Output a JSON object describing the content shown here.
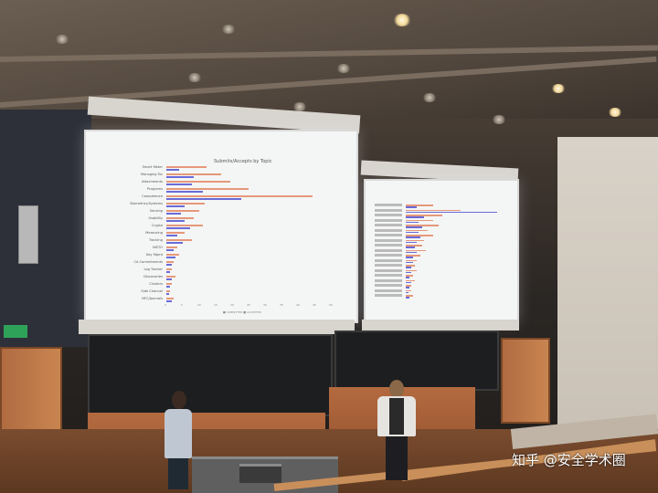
{
  "left_screen": {
    "title": "Submits/Accepts by Topic",
    "categories": [
      "Smart Meter",
      "Managing Tor",
      "Attachments",
      "Programs",
      "Competence",
      "Biometrics/Systems",
      "Sensing",
      "Usability",
      "Crypto",
      "Measuring",
      "Tracking",
      "NISTO",
      "Key Mgmt",
      "CA Commitments",
      "Log Tracker",
      "Discoveries",
      "Clusters",
      "Side Channel",
      "NFC/Journals"
    ],
    "ticks": [
      "0",
      "5",
      "10",
      "15",
      "20",
      "25",
      "30",
      "35",
      "40",
      "45",
      "50"
    ],
    "legend": "■ SUBMITTED ■ ACCEPTED"
  },
  "watermark": "知乎 @安全学术圈"
}
